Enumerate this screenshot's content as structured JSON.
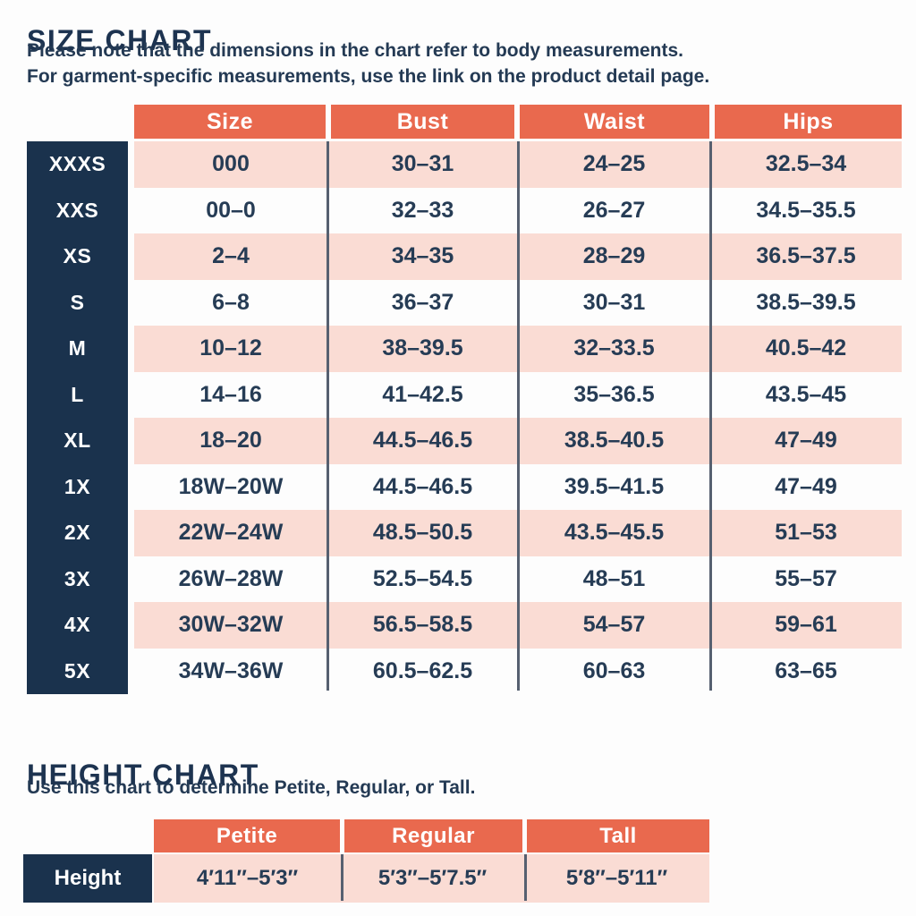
{
  "size_chart": {
    "title": "SIZE CHART",
    "note_line1": "Please note that the dimensions in the chart refer to body measurements.",
    "note_line2": "For garment-specific measurements, use the link on the product detail page.",
    "columns": [
      "Size",
      "Bust",
      "Waist",
      "Hips"
    ],
    "rows": [
      {
        "label": "XXXS",
        "size": "000",
        "bust": "30–31",
        "waist": "24–25",
        "hips": "32.5–34"
      },
      {
        "label": "XXS",
        "size": "00–0",
        "bust": "32–33",
        "waist": "26–27",
        "hips": "34.5–35.5"
      },
      {
        "label": "XS",
        "size": "2–4",
        "bust": "34–35",
        "waist": "28–29",
        "hips": "36.5–37.5"
      },
      {
        "label": "S",
        "size": "6–8",
        "bust": "36–37",
        "waist": "30–31",
        "hips": "38.5–39.5"
      },
      {
        "label": "M",
        "size": "10–12",
        "bust": "38–39.5",
        "waist": "32–33.5",
        "hips": "40.5–42"
      },
      {
        "label": "L",
        "size": "14–16",
        "bust": "41–42.5",
        "waist": "35–36.5",
        "hips": "43.5–45"
      },
      {
        "label": "XL",
        "size": "18–20",
        "bust": "44.5–46.5",
        "waist": "38.5–40.5",
        "hips": "47–49"
      },
      {
        "label": "1X",
        "size": "18W–20W",
        "bust": "44.5–46.5",
        "waist": "39.5–41.5",
        "hips": "47–49"
      },
      {
        "label": "2X",
        "size": "22W–24W",
        "bust": "48.5–50.5",
        "waist": "43.5–45.5",
        "hips": "51–53"
      },
      {
        "label": "3X",
        "size": "26W–28W",
        "bust": "52.5–54.5",
        "waist": "48–51",
        "hips": "55–57"
      },
      {
        "label": "4X",
        "size": "30W–32W",
        "bust": "56.5–58.5",
        "waist": "54–57",
        "hips": "59–61"
      },
      {
        "label": "5X",
        "size": "34W–36W",
        "bust": "60.5–62.5",
        "waist": "60–63",
        "hips": "63–65"
      }
    ]
  },
  "height_chart": {
    "title": "HEIGHT CHART",
    "note": "Use this chart to determine Petite, Regular, or Tall.",
    "columns": [
      "Petite",
      "Regular",
      "Tall"
    ],
    "row_label": "Height",
    "values": [
      "4′11″–5′3″",
      "5′3″–5′7.5″",
      "5′8″–5′11″"
    ]
  },
  "colors": {
    "accent_orange": "#E9694E",
    "row_pink": "#FADCD4",
    "navy": "#1A324D",
    "text_navy": "#263C55",
    "divider_gray": "#566070"
  }
}
